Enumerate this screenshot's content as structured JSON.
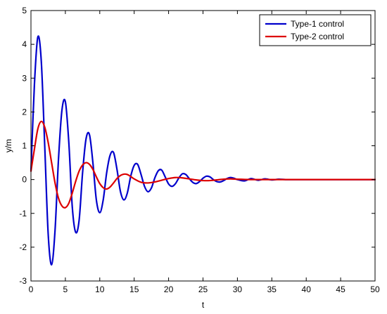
{
  "chart_data": {
    "type": "line",
    "title": "",
    "xlabel": "t",
    "ylabel": "y/m",
    "xlim": [
      0,
      50
    ],
    "ylim": [
      -3,
      5
    ],
    "xticks": [
      0,
      5,
      10,
      15,
      20,
      25,
      30,
      35,
      40,
      45,
      50
    ],
    "yticks": [
      -3,
      -2,
      -1,
      0,
      1,
      2,
      3,
      4,
      5
    ],
    "grid": false,
    "legend_position": "top-right",
    "series": [
      {
        "name": "Type-1 control",
        "color": "#0000cc",
        "x": [
          0,
          0.5,
          1.0,
          1.5,
          2.0,
          2.5,
          3.0,
          3.5,
          4.0,
          4.5,
          5.0,
          5.5,
          6.0,
          6.5,
          7.0,
          7.5,
          8.0,
          8.5,
          9.0,
          9.5,
          10.0,
          10.5,
          11.0,
          11.5,
          12.0,
          12.5,
          13.0,
          13.5,
          14.0,
          14.5,
          15.0,
          15.5,
          16.0,
          16.5,
          17.0,
          17.5,
          18.0,
          18.5,
          19.0,
          19.5,
          20.0,
          20.5,
          21.0,
          21.5,
          22.0,
          22.5,
          23.0,
          23.5,
          24.0,
          24.5,
          25.0,
          25.5,
          26.0,
          26.5,
          27.0,
          27.5,
          28.0,
          28.5,
          29.0,
          29.5,
          30.0,
          31.0,
          32.0,
          33.0,
          34.0,
          35.0,
          36.0,
          37.0,
          38.0,
          40.0,
          42.0,
          44.0,
          46.0,
          48.0,
          50.0
        ],
        "y": [
          0.25,
          2.8,
          4.22,
          3.5,
          1.0,
          -1.6,
          -2.52,
          -1.5,
          0.6,
          2.05,
          2.3,
          1.1,
          -0.8,
          -1.56,
          -1.2,
          0.2,
          1.2,
          1.33,
          0.5,
          -0.6,
          -0.98,
          -0.6,
          0.2,
          0.72,
          0.8,
          0.3,
          -0.35,
          -0.6,
          -0.4,
          0.1,
          0.42,
          0.45,
          0.15,
          -0.2,
          -0.36,
          -0.25,
          0.05,
          0.26,
          0.28,
          0.08,
          -0.13,
          -0.2,
          -0.12,
          0.05,
          0.17,
          0.15,
          0.03,
          -0.08,
          -0.12,
          -0.06,
          0.04,
          0.1,
          0.08,
          0.0,
          -0.06,
          -0.07,
          -0.03,
          0.03,
          0.06,
          0.04,
          0.0,
          -0.04,
          0.03,
          -0.02,
          0.02,
          -0.01,
          0.01,
          0.0,
          0.0,
          0.0,
          0.0,
          0.0,
          0.0,
          0.0,
          0.0
        ]
      },
      {
        "name": "Type-2 control",
        "color": "#dd0000",
        "x": [
          0,
          0.5,
          1.0,
          1.5,
          2.0,
          2.5,
          3.0,
          3.5,
          4.0,
          4.5,
          5.0,
          5.5,
          6.0,
          6.5,
          7.0,
          7.5,
          8.0,
          8.5,
          9.0,
          9.5,
          10.0,
          10.5,
          11.0,
          11.5,
          12.0,
          12.5,
          13.0,
          13.5,
          14.0,
          14.5,
          15.0,
          16.0,
          17.0,
          18.0,
          19.0,
          20.0,
          21.0,
          22.0,
          23.0,
          24.0,
          25.0,
          26.0,
          27.0,
          28.0,
          29.0,
          30.0,
          32.0,
          34.0,
          36.0,
          38.0,
          40.0,
          45.0,
          50.0
        ],
        "y": [
          0.25,
          0.9,
          1.5,
          1.72,
          1.55,
          1.1,
          0.5,
          -0.1,
          -0.55,
          -0.78,
          -0.83,
          -0.7,
          -0.4,
          -0.05,
          0.25,
          0.43,
          0.5,
          0.45,
          0.3,
          0.08,
          -0.12,
          -0.24,
          -0.28,
          -0.22,
          -0.1,
          0.03,
          0.12,
          0.16,
          0.15,
          0.09,
          0.02,
          -0.08,
          -0.1,
          -0.07,
          -0.02,
          0.03,
          0.06,
          0.05,
          0.02,
          -0.01,
          -0.03,
          -0.03,
          -0.01,
          0.01,
          0.02,
          0.01,
          0.0,
          0.0,
          0.0,
          0.0,
          0.0,
          0.0,
          0.0
        ]
      }
    ]
  }
}
